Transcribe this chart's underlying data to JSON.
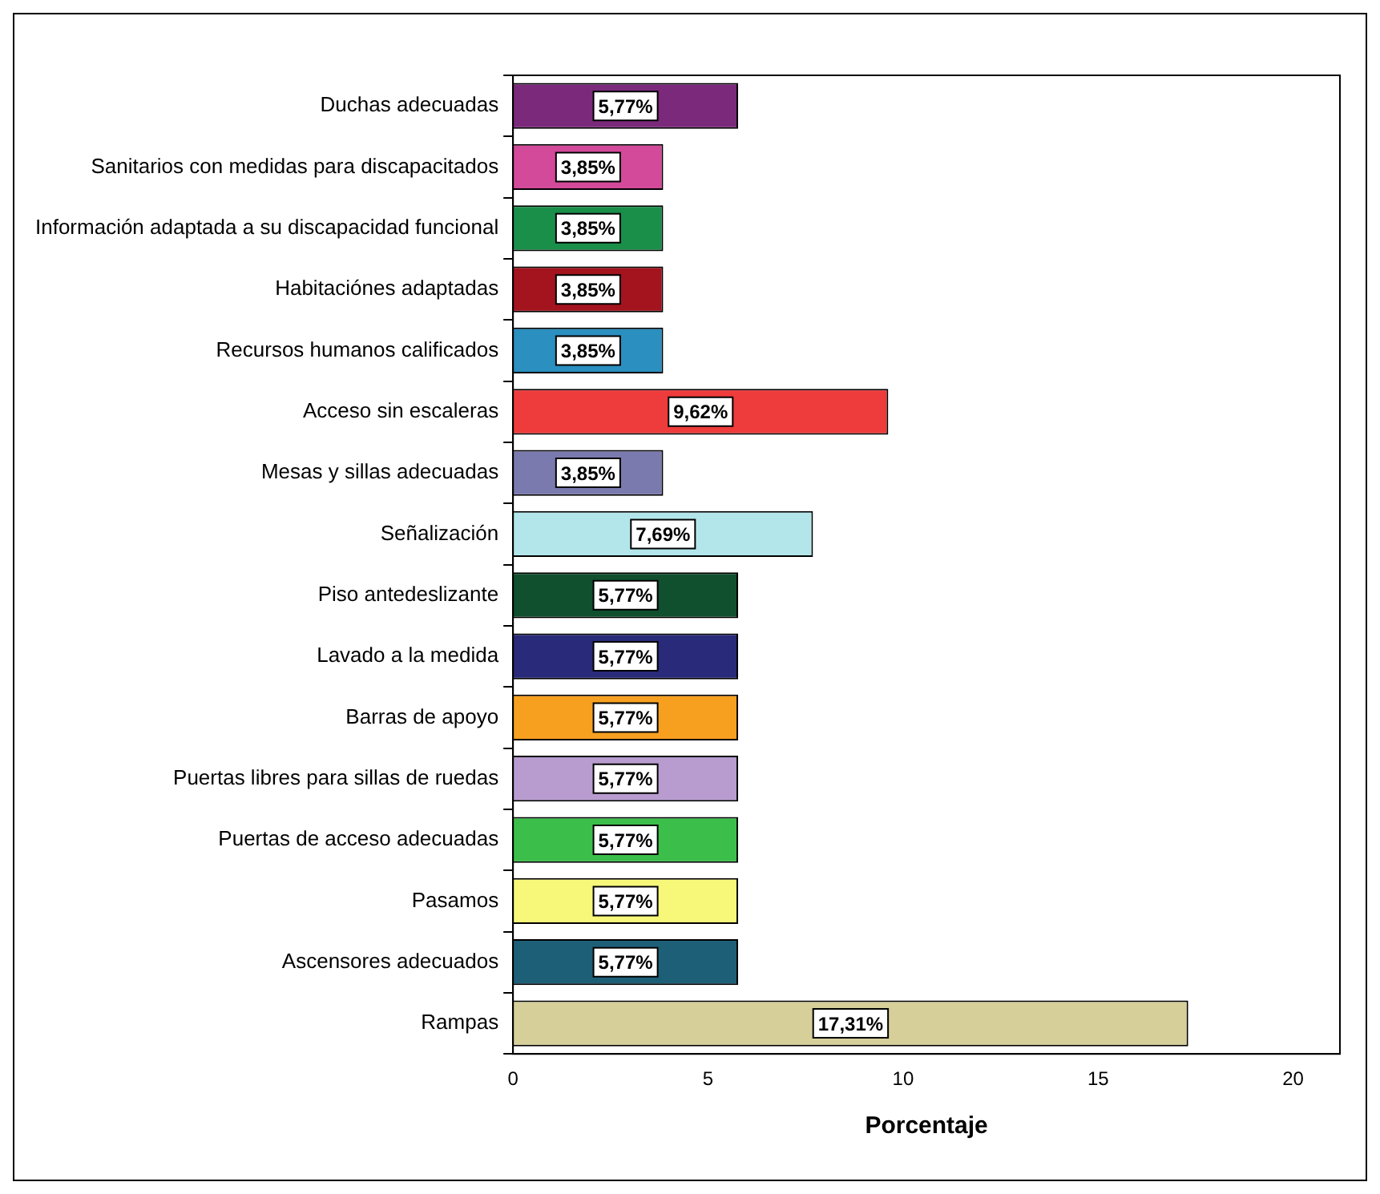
{
  "chart_data": {
    "type": "bar",
    "orientation": "horizontal",
    "xlabel": "Porcentaje",
    "categories": [
      "Duchas adecuadas",
      "Sanitarios con medidas para discapacitados",
      "Información adaptada a su discapacidad funcional",
      "Habitaciónes adaptadas",
      "Recursos humanos calificados",
      "Acceso sin escaleras",
      "Mesas y sillas adecuadas",
      "Señalización",
      "Piso antedeslizante",
      "Lavado a la medida",
      "Barras de apoyo",
      "Puertas libres para sillas de ruedas",
      "Puertas de acceso adecuadas",
      "Pasamos",
      "Ascensores adecuados",
      "Rampas"
    ],
    "values": [
      5.77,
      3.85,
      3.85,
      3.85,
      3.85,
      9.62,
      3.85,
      7.69,
      5.77,
      5.77,
      5.77,
      5.77,
      5.77,
      5.77,
      5.77,
      17.31
    ],
    "value_labels": [
      "5,77%",
      "3,85%",
      "3,85%",
      "3,85%",
      "3,85%",
      "9,62%",
      "3,85%",
      "7,69%",
      "5,77%",
      "5,77%",
      "5,77%",
      "5,77%",
      "5,77%",
      "5,77%",
      "5,77%",
      "17,31%"
    ],
    "colors": [
      "#7b2a7b",
      "#d34a9a",
      "#1a8f4a",
      "#a3141e",
      "#2b8fbf",
      "#ee3b3b",
      "#7a7aae",
      "#b3e6ea",
      "#10502e",
      "#2a2a7a",
      "#f7a020",
      "#b89ccf",
      "#3bbf4a",
      "#f7f77a",
      "#1e5f78",
      "#d6cf9a"
    ],
    "xlim": [
      0,
      21.2
    ],
    "xticks": [
      0,
      5,
      10,
      15,
      20
    ],
    "grid": false,
    "legend": false
  }
}
